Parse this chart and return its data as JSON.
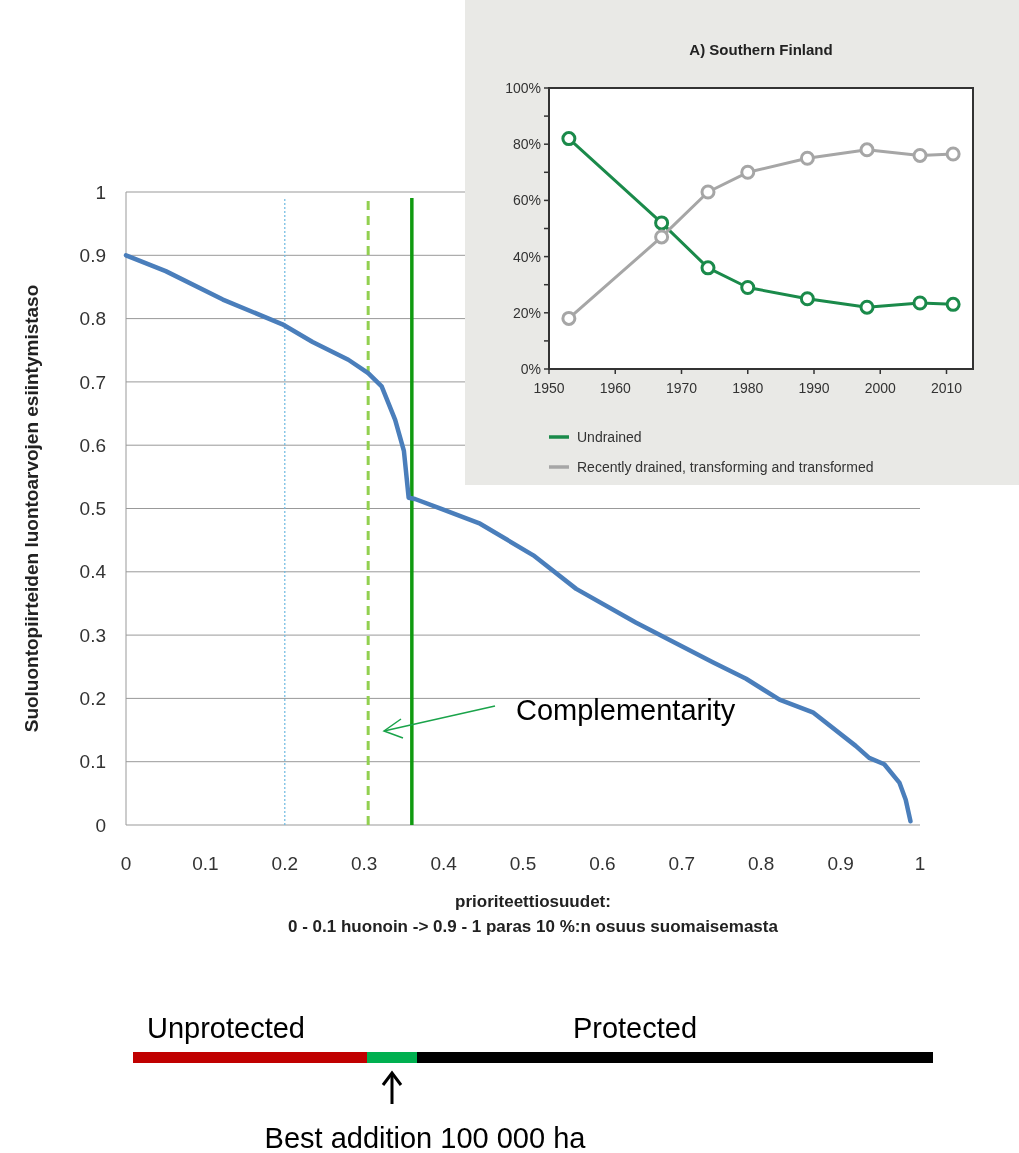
{
  "chart_data": [
    {
      "type": "line",
      "xlabel": "prioriteettiosuudet:\n0 - 0.1 huonoin -> 0.9 - 1 paras 10 %:n osuus suomaisemasta",
      "ylabel": "Suoluontopiirteiden luontoarvojen esiintymistaso",
      "xlim": [
        0,
        1
      ],
      "ylim": [
        0,
        1
      ],
      "xticks": [
        0,
        0.1,
        0.2,
        0.3,
        0.4,
        0.5,
        0.6,
        0.7,
        0.8,
        0.9,
        1
      ],
      "yticks": [
        0,
        0.1,
        0.2,
        0.3,
        0.4,
        0.5,
        0.6,
        0.7,
        0.8,
        0.9,
        1
      ],
      "grid": "y",
      "marker": "none",
      "series": [
        {
          "color": "#4a7ebb",
          "x": [
            0,
            0.05,
            0.122,
            0.197,
            0.235,
            0.28,
            0.305,
            0.322,
            0.339,
            0.35,
            0.356,
            0.364,
            0.398,
            0.446,
            0.513,
            0.567,
            0.642,
            0.739,
            0.781,
            0.823,
            0.865,
            0.919,
            0.936,
            0.955,
            0.974,
            0.982,
            0.988
          ],
          "values": [
            0.9,
            0.875,
            0.83,
            0.791,
            0.763,
            0.735,
            0.714,
            0.693,
            0.64,
            0.591,
            0.517,
            0.515,
            0.499,
            0.476,
            0.426,
            0.373,
            0.32,
            0.257,
            0.231,
            0.198,
            0.178,
            0.125,
            0.106,
            0.096,
            0.067,
            0.04,
            0.006
          ]
        }
      ],
      "ref_lines": [
        {
          "axis": "x",
          "value": 0.2,
          "color": "#6cb8e0",
          "line_style": "dotted"
        },
        {
          "axis": "x",
          "value": 0.305,
          "color": "#92d050",
          "line_style": "dashed"
        },
        {
          "axis": "x",
          "value": 0.36,
          "color": "#109a10",
          "line_style": "solid"
        }
      ],
      "annotations": [
        "Complementarity",
        "Unprotected",
        "Protected",
        "Best addition 100 000 ha"
      ]
    },
    {
      "type": "line",
      "title": "A) Southern Finland",
      "xlim": [
        1950,
        2014
      ],
      "ylim": [
        0,
        100
      ],
      "xticks": [
        1950,
        1960,
        1970,
        1980,
        1990,
        2000,
        2010
      ],
      "yticks": [
        {
          "value": 0,
          "label": "0%"
        },
        {
          "value": 10,
          "label": null
        },
        {
          "value": 20,
          "label": "20%"
        },
        {
          "value": 30,
          "label": null
        },
        {
          "value": 40,
          "label": "40%"
        },
        {
          "value": 50,
          "label": null
        },
        {
          "value": 60,
          "label": "60%"
        },
        {
          "value": 70,
          "label": null
        },
        {
          "value": 80,
          "label": "80%"
        },
        {
          "value": 90,
          "label": null
        },
        {
          "value": 100,
          "label": "100%"
        }
      ],
      "grid": false,
      "marker": "circle",
      "legend": "bottom",
      "series": [
        {
          "name": "Undrained",
          "color": "#1a8a4a",
          "x": [
            1953,
            1967,
            1974,
            1980,
            1989,
            1998,
            2006,
            2011
          ],
          "values": [
            82,
            52,
            36,
            29,
            25,
            22,
            23.5,
            23
          ]
        },
        {
          "name": "Recently drained, transforming and transformed",
          "color": "#a6a6a6",
          "x": [
            1953,
            1967,
            1974,
            1980,
            1989,
            1998,
            2006,
            2011
          ],
          "values": [
            18,
            47,
            63,
            70,
            75,
            78,
            76,
            76.5
          ]
        }
      ]
    }
  ]
}
